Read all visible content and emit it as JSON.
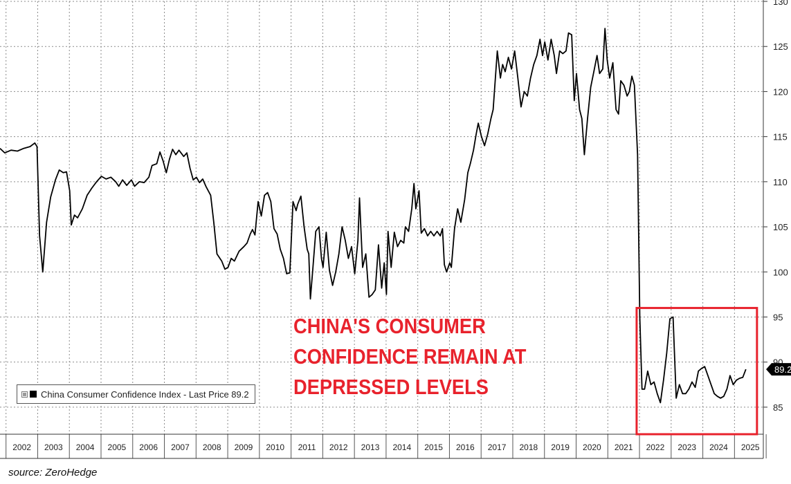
{
  "chart_data": {
    "type": "line",
    "title": "",
    "xlabel": "",
    "ylabel": "",
    "y_axis_side": "right",
    "ylim": [
      82,
      130
    ],
    "yticks": [
      85,
      90,
      95,
      100,
      105,
      110,
      115,
      120,
      125,
      130
    ],
    "year_labels": [
      "2002",
      "2003",
      "2004",
      "2005",
      "2006",
      "2007",
      "2008",
      "2009",
      "2010",
      "2011",
      "2012",
      "2013",
      "2014",
      "2015",
      "2016",
      "2017",
      "2018",
      "2019",
      "2020",
      "2021",
      "2022",
      "2023",
      "2024",
      "2025"
    ],
    "grid": true,
    "series": [
      {
        "name": "China Consumer Confidence Index",
        "color": "#000000",
        "last_price": "89.2",
        "points": [
          [
            2001.75,
            113.7
          ],
          [
            2001.9,
            113.2
          ],
          [
            2002.1,
            113.5
          ],
          [
            2002.3,
            113.4
          ],
          [
            2002.5,
            113.7
          ],
          [
            2002.7,
            113.9
          ],
          [
            2002.85,
            114.3
          ],
          [
            2002.92,
            113.9
          ],
          [
            2003.0,
            104.0
          ],
          [
            2003.1,
            100.0
          ],
          [
            2003.22,
            105.5
          ],
          [
            2003.35,
            108.3
          ],
          [
            2003.5,
            110.2
          ],
          [
            2003.62,
            111.3
          ],
          [
            2003.75,
            111.0
          ],
          [
            2003.85,
            111.1
          ],
          [
            2003.95,
            109.0
          ],
          [
            2004.0,
            105.2
          ],
          [
            2004.1,
            106.3
          ],
          [
            2004.2,
            106.0
          ],
          [
            2004.35,
            107.0
          ],
          [
            2004.5,
            108.5
          ],
          [
            2004.65,
            109.3
          ],
          [
            2004.8,
            110.0
          ],
          [
            2004.95,
            110.6
          ],
          [
            2005.1,
            110.3
          ],
          [
            2005.25,
            110.5
          ],
          [
            2005.4,
            110.0
          ],
          [
            2005.5,
            109.5
          ],
          [
            2005.62,
            110.2
          ],
          [
            2005.75,
            109.6
          ],
          [
            2005.9,
            110.2
          ],
          [
            2006.0,
            109.5
          ],
          [
            2006.15,
            110.0
          ],
          [
            2006.3,
            109.9
          ],
          [
            2006.45,
            110.5
          ],
          [
            2006.55,
            111.8
          ],
          [
            2006.7,
            112.0
          ],
          [
            2006.8,
            113.3
          ],
          [
            2006.9,
            112.3
          ],
          [
            2007.0,
            111.0
          ],
          [
            2007.1,
            112.5
          ],
          [
            2007.2,
            113.6
          ],
          [
            2007.3,
            113.0
          ],
          [
            2007.4,
            113.5
          ],
          [
            2007.55,
            112.8
          ],
          [
            2007.65,
            113.2
          ],
          [
            2007.75,
            111.5
          ],
          [
            2007.85,
            110.2
          ],
          [
            2007.95,
            110.5
          ],
          [
            2008.05,
            109.9
          ],
          [
            2008.15,
            110.3
          ],
          [
            2008.25,
            109.5
          ],
          [
            2008.4,
            108.5
          ],
          [
            2008.5,
            105.5
          ],
          [
            2008.6,
            102.0
          ],
          [
            2008.75,
            101.2
          ],
          [
            2008.85,
            100.3
          ],
          [
            2008.95,
            100.5
          ],
          [
            2009.05,
            101.5
          ],
          [
            2009.15,
            101.2
          ],
          [
            2009.3,
            102.3
          ],
          [
            2009.45,
            102.8
          ],
          [
            2009.55,
            103.2
          ],
          [
            2009.65,
            104.2
          ],
          [
            2009.72,
            104.7
          ],
          [
            2009.8,
            104.1
          ],
          [
            2009.9,
            107.8
          ],
          [
            2010.0,
            106.2
          ],
          [
            2010.1,
            108.5
          ],
          [
            2010.2,
            108.8
          ],
          [
            2010.3,
            107.8
          ],
          [
            2010.4,
            104.8
          ],
          [
            2010.5,
            104.2
          ],
          [
            2010.6,
            102.5
          ],
          [
            2010.7,
            101.5
          ],
          [
            2010.8,
            99.8
          ],
          [
            2010.9,
            99.9
          ],
          [
            2011.0,
            107.8
          ],
          [
            2011.1,
            106.8
          ],
          [
            2011.15,
            107.5
          ],
          [
            2011.25,
            108.4
          ],
          [
            2011.35,
            105.0
          ],
          [
            2011.45,
            102.5
          ],
          [
            2011.5,
            102.0
          ],
          [
            2011.55,
            97.0
          ],
          [
            2011.62,
            100.0
          ],
          [
            2011.72,
            104.5
          ],
          [
            2011.82,
            105.0
          ],
          [
            2011.9,
            101.5
          ],
          [
            2011.95,
            100.5
          ],
          [
            2012.05,
            104.4
          ],
          [
            2012.15,
            100.2
          ],
          [
            2012.25,
            98.5
          ],
          [
            2012.35,
            100.0
          ],
          [
            2012.45,
            102.0
          ],
          [
            2012.55,
            105.0
          ],
          [
            2012.65,
            103.5
          ],
          [
            2012.75,
            101.5
          ],
          [
            2012.85,
            102.8
          ],
          [
            2012.95,
            99.8
          ],
          [
            2013.05,
            103.5
          ],
          [
            2013.1,
            108.2
          ],
          [
            2013.2,
            100.5
          ],
          [
            2013.3,
            102.0
          ],
          [
            2013.4,
            97.2
          ],
          [
            2013.5,
            97.5
          ],
          [
            2013.6,
            98.0
          ],
          [
            2013.7,
            103.0
          ],
          [
            2013.8,
            98.2
          ],
          [
            2013.88,
            101.0
          ],
          [
            2013.95,
            97.5
          ],
          [
            2014.0,
            104.5
          ],
          [
            2014.1,
            100.5
          ],
          [
            2014.2,
            104.4
          ],
          [
            2014.3,
            102.8
          ],
          [
            2014.4,
            103.5
          ],
          [
            2014.5,
            103.2
          ],
          [
            2014.55,
            105.0
          ],
          [
            2014.65,
            104.5
          ],
          [
            2014.75,
            107.0
          ],
          [
            2014.82,
            109.8
          ],
          [
            2014.88,
            107.0
          ],
          [
            2014.98,
            109.0
          ],
          [
            2015.05,
            104.3
          ],
          [
            2015.15,
            104.8
          ],
          [
            2015.25,
            104.0
          ],
          [
            2015.35,
            104.5
          ],
          [
            2015.45,
            104.0
          ],
          [
            2015.55,
            104.5
          ],
          [
            2015.65,
            104.0
          ],
          [
            2015.72,
            104.8
          ],
          [
            2015.78,
            100.8
          ],
          [
            2015.85,
            100.0
          ],
          [
            2015.95,
            101.0
          ],
          [
            2016.0,
            100.5
          ],
          [
            2016.1,
            104.8
          ],
          [
            2016.2,
            107.0
          ],
          [
            2016.3,
            105.5
          ],
          [
            2016.42,
            108.0
          ],
          [
            2016.52,
            111.0
          ],
          [
            2016.6,
            112.0
          ],
          [
            2016.7,
            113.5
          ],
          [
            2016.78,
            115.2
          ],
          [
            2016.85,
            116.5
          ],
          [
            2016.95,
            115.0
          ],
          [
            2017.05,
            114.0
          ],
          [
            2017.15,
            115.3
          ],
          [
            2017.25,
            117.0
          ],
          [
            2017.32,
            118.0
          ],
          [
            2017.45,
            124.5
          ],
          [
            2017.55,
            121.5
          ],
          [
            2017.62,
            123.0
          ],
          [
            2017.7,
            122.2
          ],
          [
            2017.8,
            123.8
          ],
          [
            2017.9,
            122.5
          ],
          [
            2018.0,
            124.5
          ],
          [
            2018.1,
            121.5
          ],
          [
            2018.2,
            118.3
          ],
          [
            2018.3,
            120.0
          ],
          [
            2018.4,
            119.5
          ],
          [
            2018.5,
            121.5
          ],
          [
            2018.6,
            123.0
          ],
          [
            2018.7,
            124.0
          ],
          [
            2018.8,
            125.8
          ],
          [
            2018.88,
            124.0
          ],
          [
            2018.95,
            125.5
          ],
          [
            2019.05,
            123.5
          ],
          [
            2019.15,
            125.8
          ],
          [
            2019.25,
            124.0
          ],
          [
            2019.32,
            122.0
          ],
          [
            2019.42,
            124.5
          ],
          [
            2019.52,
            124.2
          ],
          [
            2019.62,
            124.5
          ],
          [
            2019.7,
            126.5
          ],
          [
            2019.8,
            126.3
          ],
          [
            2019.88,
            119.0
          ],
          [
            2019.95,
            122.0
          ],
          [
            2020.05,
            118.0
          ],
          [
            2020.12,
            117.0
          ],
          [
            2020.2,
            113.0
          ],
          [
            2020.3,
            117.0
          ],
          [
            2020.4,
            120.5
          ],
          [
            2020.5,
            122.2
          ],
          [
            2020.6,
            124.0
          ],
          [
            2020.68,
            122.0
          ],
          [
            2020.78,
            122.5
          ],
          [
            2020.85,
            127.0
          ],
          [
            2020.92,
            123.5
          ],
          [
            2021.0,
            121.5
          ],
          [
            2021.1,
            123.2
          ],
          [
            2021.2,
            118.0
          ],
          [
            2021.28,
            117.5
          ],
          [
            2021.35,
            121.2
          ],
          [
            2021.45,
            120.7
          ],
          [
            2021.55,
            119.5
          ],
          [
            2021.62,
            120.0
          ],
          [
            2021.7,
            121.7
          ],
          [
            2021.78,
            120.7
          ],
          [
            2021.88,
            113.0
          ],
          [
            2021.95,
            95.0
          ],
          [
            2022.02,
            87.0
          ],
          [
            2022.1,
            87.0
          ],
          [
            2022.2,
            89.0
          ],
          [
            2022.3,
            87.5
          ],
          [
            2022.4,
            87.8
          ],
          [
            2022.5,
            86.5
          ],
          [
            2022.6,
            85.5
          ],
          [
            2022.7,
            88.0
          ],
          [
            2022.8,
            91.0
          ],
          [
            2022.9,
            94.8
          ],
          [
            2023.0,
            95.0
          ],
          [
            2023.1,
            86.0
          ],
          [
            2023.2,
            87.5
          ],
          [
            2023.3,
            86.5
          ],
          [
            2023.4,
            86.5
          ],
          [
            2023.5,
            87.0
          ],
          [
            2023.6,
            87.8
          ],
          [
            2023.7,
            87.2
          ],
          [
            2023.8,
            89.0
          ],
          [
            2023.9,
            89.3
          ],
          [
            2024.0,
            89.5
          ],
          [
            2024.1,
            88.5
          ],
          [
            2024.2,
            87.5
          ],
          [
            2024.3,
            86.5
          ],
          [
            2024.4,
            86.2
          ],
          [
            2024.5,
            86.0
          ],
          [
            2024.6,
            86.2
          ],
          [
            2024.7,
            87.0
          ],
          [
            2024.8,
            88.5
          ],
          [
            2024.9,
            87.5
          ],
          [
            2025.0,
            88.0
          ],
          [
            2025.1,
            88.2
          ],
          [
            2025.2,
            88.3
          ],
          [
            2025.3,
            89.2
          ]
        ]
      }
    ],
    "annotation": {
      "lines": [
        "CHINA'S CONSUMER",
        "CONFIDENCE REMAIN AT",
        "DEPRESSED LEVELS"
      ],
      "color": "#e8222c",
      "highlight_range": {
        "x": [
          2021.85,
          2025.65
        ],
        "y": [
          82,
          96
        ]
      }
    },
    "legend": {
      "label": "China Consumer Confidence Index - Last Price 89.2",
      "placement": "bottom-left"
    },
    "last_value_label": "89.2",
    "source": "source: ZeroHedge"
  }
}
